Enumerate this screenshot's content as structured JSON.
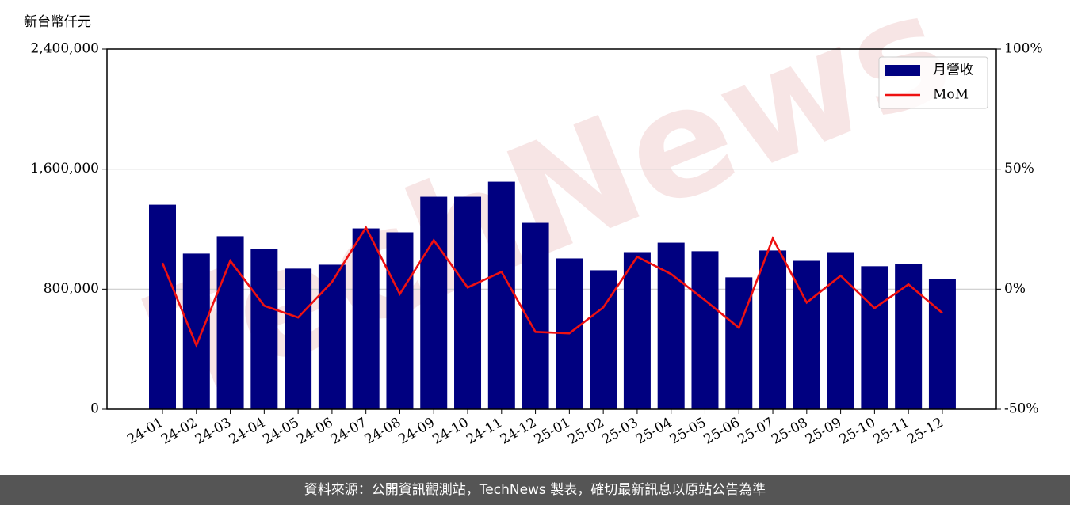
{
  "chart_data": {
    "type": "bar-line",
    "y_label": "新台幣仟元",
    "watermark": "TechNews",
    "footer": "資料來源：公開資訊觀測站，TechNews 製表，確切最新訊息以原站公告為準",
    "categories": [
      "24-01",
      "24-02",
      "24-03",
      "24-04",
      "24-05",
      "24-06",
      "24-07",
      "24-08",
      "24-09",
      "24-10",
      "24-11",
      "24-12",
      "25-01",
      "25-02",
      "25-03",
      "25-04",
      "25-05",
      "25-06",
      "25-07",
      "25-08",
      "25-09",
      "25-10",
      "25-11",
      "25-12"
    ],
    "series": [
      {
        "name": "月營收",
        "type": "bar",
        "color": "#000080",
        "values": [
          1363000,
          1037000,
          1153000,
          1068000,
          937000,
          963000,
          1205000,
          1179000,
          1416000,
          1416000,
          1516000,
          1242000,
          1005000,
          926000,
          1047000,
          1110000,
          1053000,
          879000,
          1058000,
          989000,
          1047000,
          953000,
          968000,
          868000
        ]
      },
      {
        "name": "MoM",
        "type": "line",
        "color": "#ee1111",
        "axis": "y2",
        "values": [
          10.9,
          -23.4,
          11.8,
          -6.9,
          -11.8,
          3.0,
          25.7,
          -2.0,
          20.4,
          0.7,
          7.2,
          -17.8,
          -18.4,
          -7.6,
          13.5,
          6.3,
          -4.6,
          -16.1,
          21.1,
          -5.6,
          5.6,
          -7.9,
          2.0,
          -9.9
        ]
      }
    ],
    "ylim": [
      0,
      2400000
    ],
    "yticks": [
      0,
      {
        "value": 800000,
        "label": "800,000"
      },
      {
        "value": 1600000,
        "label": "1,600,000"
      },
      {
        "value": 2400000,
        "label": "2,400,000"
      }
    ],
    "y2lim": [
      -50,
      100
    ],
    "y2ticks": [
      {
        "value": -50,
        "label": "-50%"
      },
      {
        "value": 0,
        "label": "0%"
      },
      {
        "value": 50,
        "label": "50%"
      },
      {
        "value": 100,
        "label": "100%"
      }
    ],
    "grid": true,
    "legend": "upper right"
  }
}
